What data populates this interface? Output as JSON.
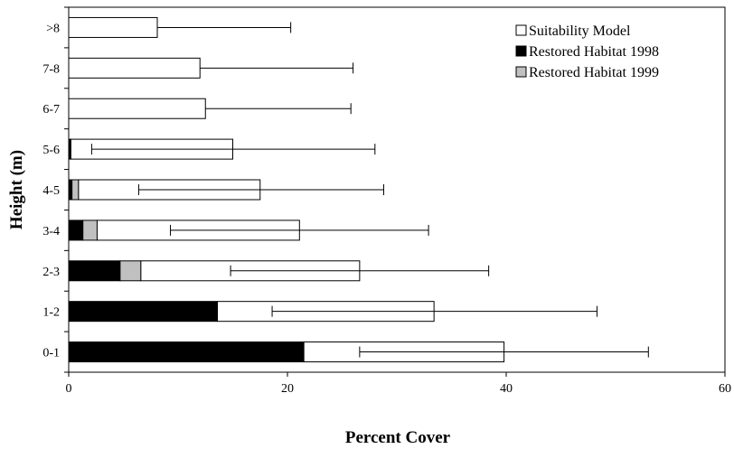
{
  "chart_data": {
    "type": "bar",
    "orientation": "horizontal",
    "stacked": true,
    "xlabel": "Percent Cover",
    "ylabel": "Height (m)",
    "xlim": [
      0,
      60
    ],
    "xticks": [
      0,
      20,
      40,
      60
    ],
    "categories": [
      "0-1",
      "1-2",
      "2-3",
      "3-4",
      "4-5",
      "5-6",
      "6-7",
      "7-8",
      ">8"
    ],
    "series": [
      {
        "name": "Restored Habitat 1998",
        "color": "#000000",
        "values": [
          21.5,
          13.6,
          4.7,
          1.3,
          0.3,
          0.2,
          0,
          0,
          0
        ]
      },
      {
        "name": "Restored Habitat 1999",
        "color": "#c0c0c0",
        "values": [
          0,
          0,
          1.9,
          1.3,
          0.6,
          0,
          0,
          0,
          0
        ]
      },
      {
        "name": "Suitability Model",
        "color": "#ffffff",
        "values": [
          18.3,
          19.8,
          20.0,
          18.5,
          16.6,
          14.8,
          12.5,
          12.0,
          8.1
        ]
      }
    ],
    "error_bars": {
      "lower": [
        26.6,
        18.6,
        14.8,
        9.3,
        6.4,
        2.1,
        null,
        null,
        null
      ],
      "upper": [
        53.0,
        48.3,
        38.4,
        32.9,
        28.8,
        28.0,
        25.8,
        26.0,
        20.3
      ]
    },
    "legend": {
      "position": "top-right",
      "order": [
        "Suitability Model",
        "Restored Habitat 1998",
        "Restored Habitat 1999"
      ]
    },
    "grid": false
  }
}
